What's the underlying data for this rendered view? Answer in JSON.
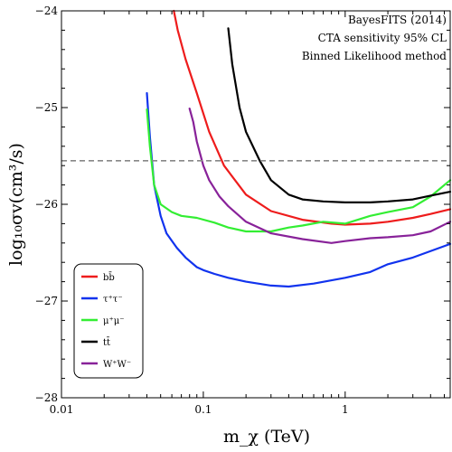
{
  "chart_data": {
    "type": "line",
    "xlabel": "m_χ (TeV)",
    "ylabel": "log₁₀σv(cm³/s)",
    "xscale": "log",
    "xlim": [
      0.01,
      5.5
    ],
    "ylim": [
      -28,
      -24
    ],
    "grid": false,
    "legend_placement": "bottom-left",
    "xticks": [
      {
        "value": 0.01,
        "label": "0.01"
      },
      {
        "value": 0.1,
        "label": "0.1"
      },
      {
        "value": 1,
        "label": "1"
      }
    ],
    "yticks": [
      {
        "value": -24,
        "label": "−24"
      },
      {
        "value": -25,
        "label": "−25"
      },
      {
        "value": -26,
        "label": "−26"
      },
      {
        "value": -27,
        "label": "−27"
      },
      {
        "value": -28,
        "label": "−28"
      }
    ],
    "annotations": [
      "BayesFITS (2014)",
      "CTA sensitivity 95% CL",
      "Binned Likelihood method"
    ],
    "reference_line": {
      "y": -25.55,
      "style": "dashed",
      "color": "#888888"
    },
    "series": [
      {
        "name": "bb̄",
        "color": "#ee1c1c",
        "x": [
          0.062,
          0.066,
          0.075,
          0.09,
          0.11,
          0.14,
          0.2,
          0.3,
          0.5,
          0.8,
          1.0,
          1.5,
          2.0,
          3.0,
          4.0,
          5.5
        ],
        "y": [
          -24.0,
          -24.2,
          -24.5,
          -24.85,
          -25.25,
          -25.6,
          -25.9,
          -26.07,
          -26.16,
          -26.2,
          -26.21,
          -26.2,
          -26.18,
          -26.14,
          -26.1,
          -26.05
        ]
      },
      {
        "name": "τ⁺τ⁻",
        "color": "#1133ee",
        "x": [
          0.04,
          0.042,
          0.045,
          0.05,
          0.055,
          0.065,
          0.075,
          0.09,
          0.1,
          0.12,
          0.15,
          0.2,
          0.3,
          0.4,
          0.6,
          1.0,
          1.5,
          2.0,
          3.0,
          5.5
        ],
        "y": [
          -24.85,
          -25.3,
          -25.8,
          -26.12,
          -26.3,
          -26.45,
          -26.55,
          -26.65,
          -26.68,
          -26.72,
          -26.76,
          -26.8,
          -26.84,
          -26.85,
          -26.82,
          -26.76,
          -26.7,
          -26.62,
          -26.55,
          -26.41
        ]
      },
      {
        "name": "μ⁺μ⁻",
        "color": "#33ee33",
        "x": [
          0.04,
          0.042,
          0.045,
          0.05,
          0.06,
          0.07,
          0.09,
          0.12,
          0.15,
          0.2,
          0.3,
          0.4,
          0.5,
          0.7,
          1.0,
          1.5,
          2.0,
          3.0,
          4.0,
          5.5
        ],
        "y": [
          -25.02,
          -25.4,
          -25.8,
          -26.0,
          -26.08,
          -26.12,
          -26.14,
          -26.19,
          -26.24,
          -26.28,
          -26.28,
          -26.24,
          -26.22,
          -26.18,
          -26.2,
          -26.12,
          -26.08,
          -26.03,
          -25.92,
          -25.75
        ]
      },
      {
        "name": "tt̄",
        "color": "#000000",
        "x": [
          0.15,
          0.16,
          0.18,
          0.2,
          0.25,
          0.3,
          0.4,
          0.5,
          0.7,
          1.0,
          1.5,
          2.0,
          3.0,
          4.0,
          5.5
        ],
        "y": [
          -24.18,
          -24.55,
          -25.0,
          -25.25,
          -25.55,
          -25.75,
          -25.9,
          -25.95,
          -25.97,
          -25.98,
          -25.98,
          -25.97,
          -25.95,
          -25.91,
          -25.87
        ]
      },
      {
        "name": "W⁺W⁻",
        "color": "#882299",
        "x": [
          0.08,
          0.085,
          0.09,
          0.1,
          0.11,
          0.13,
          0.15,
          0.2,
          0.3,
          0.5,
          0.8,
          1.0,
          1.5,
          2.0,
          3.0,
          4.0,
          5.5
        ],
        "y": [
          -25.01,
          -25.15,
          -25.35,
          -25.6,
          -25.75,
          -25.92,
          -26.02,
          -26.18,
          -26.3,
          -26.36,
          -26.4,
          -26.38,
          -26.35,
          -26.34,
          -26.32,
          -26.28,
          -26.18
        ]
      }
    ]
  }
}
